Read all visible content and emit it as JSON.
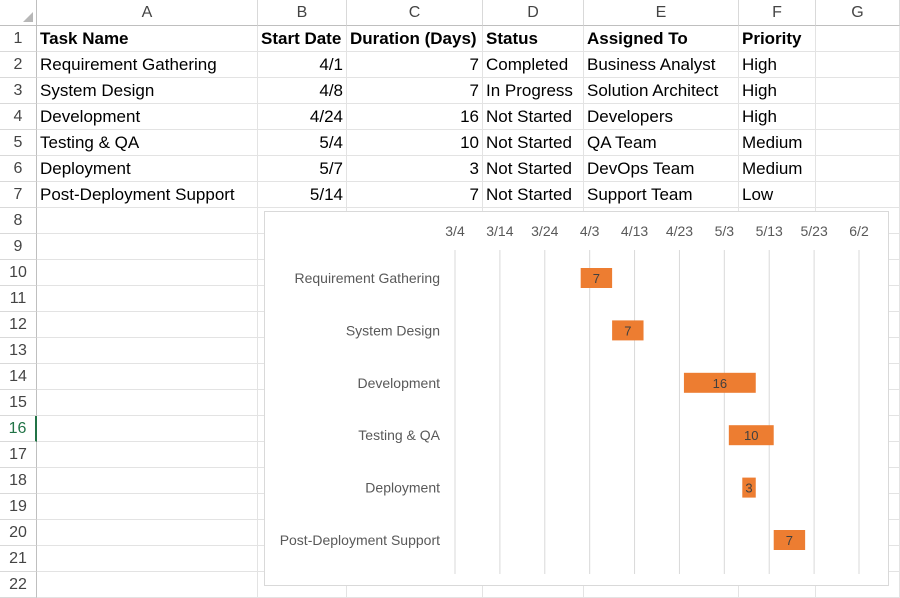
{
  "columns": [
    "A",
    "B",
    "C",
    "D",
    "E",
    "F",
    "G"
  ],
  "rows": [
    "1",
    "2",
    "3",
    "4",
    "5",
    "6",
    "7",
    "8",
    "9",
    "10",
    "11",
    "12",
    "13",
    "14",
    "15",
    "16",
    "17",
    "18",
    "19",
    "20",
    "21",
    "22"
  ],
  "selected_row": "16",
  "headers": [
    "Task Name",
    "Start Date",
    "Duration (Days)",
    "Status",
    "Assigned To",
    "Priority"
  ],
  "tasks": [
    {
      "name": "Requirement Gathering",
      "start": "4/1",
      "duration": "7",
      "status": "Completed",
      "assigned": "Business Analyst",
      "priority": "High"
    },
    {
      "name": "System Design",
      "start": "4/8",
      "duration": "7",
      "status": "In Progress",
      "assigned": "Solution Architect",
      "priority": "High"
    },
    {
      "name": "Development",
      "start": "4/24",
      "duration": "16",
      "status": "Not Started",
      "assigned": "Developers",
      "priority": "High"
    },
    {
      "name": "Testing & QA",
      "start": "5/4",
      "duration": "10",
      "status": "Not Started",
      "assigned": "QA Team",
      "priority": "Medium"
    },
    {
      "name": "Deployment",
      "start": "5/7",
      "duration": "3",
      "status": "Not Started",
      "assigned": "DevOps Team",
      "priority": "Medium"
    },
    {
      "name": "Post-Deployment Support",
      "start": "5/14",
      "duration": "7",
      "status": "Not Started",
      "assigned": "Support Team",
      "priority": "Low"
    }
  ],
  "chart_data": {
    "type": "bar",
    "orientation": "horizontal",
    "stacked_gantt": true,
    "categories": [
      "Requirement Gathering",
      "System Design",
      "Development",
      "Testing & QA",
      "Deployment",
      "Post-Deployment Support"
    ],
    "start_dates": [
      "4/1",
      "4/8",
      "4/24",
      "5/4",
      "5/7",
      "5/14"
    ],
    "durations": [
      7,
      7,
      16,
      10,
      3,
      7
    ],
    "x_axis_position": "top",
    "x_ticks": [
      "3/4",
      "3/14",
      "3/24",
      "4/3",
      "4/13",
      "4/23",
      "5/3",
      "5/13",
      "5/23",
      "6/2"
    ],
    "xlim": [
      "3/4",
      "6/2"
    ],
    "grid": true,
    "bar_color": "#ED7D31",
    "data_labels": true,
    "legend": "none"
  }
}
